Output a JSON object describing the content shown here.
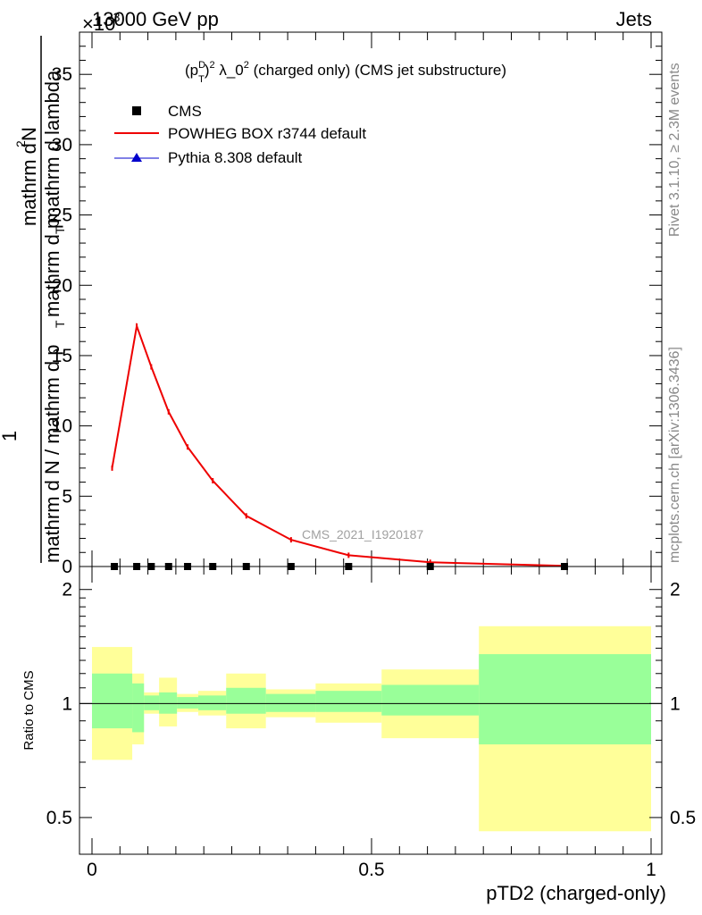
{
  "header": {
    "energy_label": "13000 GeV pp",
    "process_label": "Jets",
    "exponent_marker": "×10",
    "exponent_value": "-3"
  },
  "side_labels": {
    "rivet": "Rivet 3.1.10, ≥ 2.3M events",
    "mcplots": "mcplots.cern.ch [arXiv:1306.3436]"
  },
  "watermark": "CMS_2021_I1920187",
  "chart_data": [
    {
      "type": "line",
      "title_parts": {
        "p": "(p",
        "sup_d": "D",
        "sub_t": "T",
        "close": ")",
        "sup2": "2",
        "lambda": " λ_0",
        "sup2b": "2",
        "rest": " (charged only) (CMS jet substructure)"
      },
      "ylabel_parts": {
        "one": "1",
        "den_pre": "mathrm d N / mathrm d p",
        "den_sub": "T",
        "num": "mathrm d",
        "num_sup": "2",
        "num_n": "N",
        "den2_pre": "mathrm d p",
        "den2_sub": "T",
        "den2_post": " mathrm d lambda"
      },
      "xlim": [
        0,
        1
      ],
      "ylim": [
        0,
        38
      ],
      "y_ticks": [
        0,
        5,
        10,
        15,
        20,
        25,
        30,
        35
      ],
      "series": [
        {
          "name": "CMS",
          "color": "#000000",
          "marker": "square",
          "x": [
            0.04,
            0.08,
            0.106,
            0.137,
            0.171,
            0.216,
            0.276,
            0.356,
            0.459,
            0.605,
            0.845
          ],
          "y": [
            0,
            0,
            0,
            0,
            0,
            0,
            0,
            0,
            0,
            0,
            0
          ]
        },
        {
          "name": "POWHEG BOX r3744 default",
          "color": "#ee0000",
          "marker": "line",
          "x": [
            0.036,
            0.08,
            0.106,
            0.137,
            0.171,
            0.216,
            0.276,
            0.356,
            0.459,
            0.605,
            0.845
          ],
          "y": [
            7.0,
            17.1,
            14.2,
            11.0,
            8.5,
            6.1,
            3.6,
            1.9,
            0.8,
            0.3,
            0.05
          ]
        },
        {
          "name": "Pythia 8.308 default",
          "color": "#0000cc",
          "marker": "triangle",
          "x": [],
          "y": []
        }
      ],
      "legend_position": "top-left"
    },
    {
      "type": "area",
      "ylabel": "Ratio to CMS",
      "xlabel": "pTD2 (charged-only)",
      "xlim": [
        0,
        1
      ],
      "ylim": [
        0.4,
        2.3
      ],
      "y_scale": "log",
      "y_ticks": [
        0.5,
        1,
        2
      ],
      "y_tick_labels": [
        "0.5",
        "1",
        "2"
      ],
      "x_ticks": [
        0,
        0.5,
        1
      ],
      "x_tick_labels": [
        "0",
        "0.5",
        "1"
      ],
      "reference_line": 1,
      "bins": [
        {
          "x0": 0.0,
          "x1": 0.072,
          "inner": [
            0.86,
            1.2
          ],
          "outer": [
            0.71,
            1.41
          ]
        },
        {
          "x0": 0.072,
          "x1": 0.093,
          "inner": [
            0.84,
            1.13
          ],
          "outer": [
            0.78,
            1.2
          ]
        },
        {
          "x0": 0.093,
          "x1": 0.12,
          "inner": [
            0.96,
            1.05
          ],
          "outer": [
            0.94,
            1.07
          ]
        },
        {
          "x0": 0.12,
          "x1": 0.152,
          "inner": [
            0.94,
            1.07
          ],
          "outer": [
            0.87,
            1.17
          ]
        },
        {
          "x0": 0.152,
          "x1": 0.19,
          "inner": [
            0.97,
            1.04
          ],
          "outer": [
            0.95,
            1.06
          ]
        },
        {
          "x0": 0.19,
          "x1": 0.24,
          "inner": [
            0.96,
            1.05
          ],
          "outer": [
            0.93,
            1.08
          ]
        },
        {
          "x0": 0.24,
          "x1": 0.311,
          "inner": [
            0.94,
            1.1
          ],
          "outer": [
            0.86,
            1.2
          ]
        },
        {
          "x0": 0.311,
          "x1": 0.4,
          "inner": [
            0.95,
            1.06
          ],
          "outer": [
            0.92,
            1.09
          ]
        },
        {
          "x0": 0.4,
          "x1": 0.518,
          "inner": [
            0.95,
            1.08
          ],
          "outer": [
            0.89,
            1.13
          ]
        },
        {
          "x0": 0.518,
          "x1": 0.692,
          "inner": [
            0.93,
            1.12
          ],
          "outer": [
            0.81,
            1.23
          ]
        },
        {
          "x0": 0.692,
          "x1": 1.0,
          "inner": [
            0.78,
            1.35
          ],
          "outer": [
            0.46,
            1.6
          ]
        }
      ],
      "band_colors": {
        "inner": "#99ff99",
        "outer": "#ffff99"
      }
    }
  ]
}
